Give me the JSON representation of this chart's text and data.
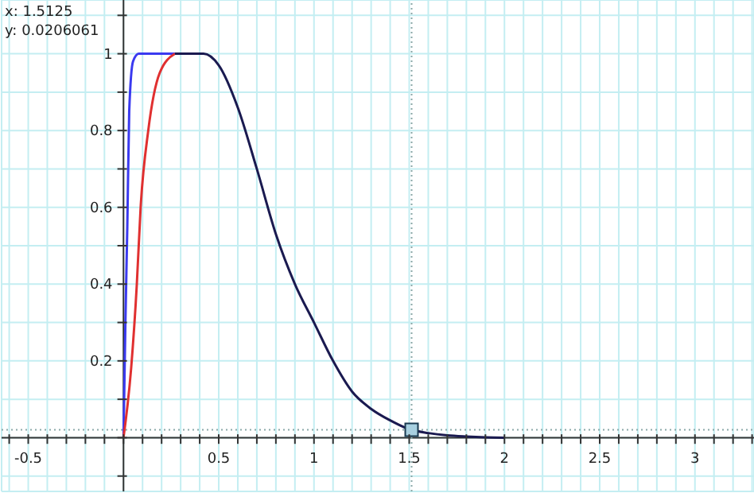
{
  "chart_data": {
    "type": "line",
    "xlim": [
      -0.64,
      3.31
    ],
    "ylim": [
      -0.14,
      1.14
    ],
    "xticks": [
      {
        "value": -0.6,
        "label": null
      },
      -0.5,
      {
        "value": -0.4,
        "label": null
      },
      {
        "value": -0.3,
        "label": null
      },
      {
        "value": -0.2,
        "label": null
      },
      {
        "value": -0.1,
        "label": null
      },
      {
        "value": 0,
        "label": null
      },
      {
        "value": 0.1,
        "label": null
      },
      {
        "value": 0.2,
        "label": null
      },
      {
        "value": 0.3,
        "label": null
      },
      {
        "value": 0.4,
        "label": null
      },
      0.5,
      {
        "value": 0.6,
        "label": null
      },
      {
        "value": 0.7,
        "label": null
      },
      {
        "value": 0.8,
        "label": null
      },
      {
        "value": 0.9,
        "label": null
      },
      1,
      {
        "value": 1.1,
        "label": null
      },
      {
        "value": 1.2,
        "label": null
      },
      {
        "value": 1.3,
        "label": null
      },
      {
        "value": 1.4,
        "label": null
      },
      1.5,
      {
        "value": 1.6,
        "label": null
      },
      {
        "value": 1.7,
        "label": null
      },
      {
        "value": 1.8,
        "label": null
      },
      {
        "value": 1.9,
        "label": null
      },
      2,
      {
        "value": 2.1,
        "label": null
      },
      {
        "value": 2.2,
        "label": null
      },
      {
        "value": 2.3,
        "label": null
      },
      {
        "value": 2.4,
        "label": null
      },
      2.5,
      {
        "value": 2.6,
        "label": null
      },
      {
        "value": 2.7,
        "label": null
      },
      {
        "value": 2.8,
        "label": null
      },
      {
        "value": 2.9,
        "label": null
      },
      3,
      {
        "value": 3.1,
        "label": null
      },
      {
        "value": 3.2,
        "label": null
      },
      {
        "value": 3.3,
        "label": null
      }
    ],
    "yticks": [
      {
        "value": -0.1,
        "label": null
      },
      {
        "value": 0,
        "label": null
      },
      {
        "value": 0.1,
        "label": null
      },
      0.2,
      {
        "value": 0.3,
        "label": null
      },
      0.4,
      {
        "value": 0.5,
        "label": null
      },
      0.6,
      {
        "value": 0.7,
        "label": null
      },
      0.8,
      {
        "value": 0.9,
        "label": null
      },
      1,
      {
        "value": 1.1,
        "label": null
      }
    ],
    "grid": true,
    "legend": false,
    "marker": "none",
    "series": [
      {
        "color": "#3a3af0",
        "x": [
          0,
          0.01,
          0.02,
          0.03,
          0.05,
          0.08,
          0.3
        ],
        "values": [
          0,
          0.3,
          0.55,
          0.85,
          0.98,
          1,
          1
        ]
      },
      {
        "color": "#e03030",
        "x": [
          0,
          0.04,
          0.07,
          0.09,
          0.13,
          0.19,
          0.27
        ],
        "values": [
          0,
          0.18,
          0.4,
          0.6,
          0.8,
          0.95,
          1
        ]
      },
      {
        "color": "#1a1a50",
        "x": [
          0.27,
          0.42,
          0.5,
          0.6,
          0.7,
          0.8,
          0.9,
          1.0,
          1.1,
          1.2,
          1.3,
          1.4,
          1.5,
          1.6,
          1.7,
          1.8,
          1.9,
          2.0
        ],
        "values": [
          1,
          1,
          0.97,
          0.86,
          0.7,
          0.53,
          0.4,
          0.3,
          0.2,
          0.12,
          0.075,
          0.045,
          0.022,
          0.012,
          0.006,
          0.003,
          0.001,
          0
        ]
      },
      {
        "type": "scatter",
        "marker": "square",
        "color": "#a8d0e0",
        "x": [
          1.5125
        ],
        "values": [
          0.0206061
        ]
      }
    ],
    "ref_lines": [
      {
        "axis": "x",
        "value": 1.5125,
        "color": "#8aa8a8",
        "line_style": "dotted"
      },
      {
        "axis": "y",
        "value": 0.0206061,
        "color": "#8aa8a8",
        "line_style": "dotted"
      }
    ],
    "annotations": [
      "x: 1.5125",
      "y: 0.0206061"
    ]
  }
}
